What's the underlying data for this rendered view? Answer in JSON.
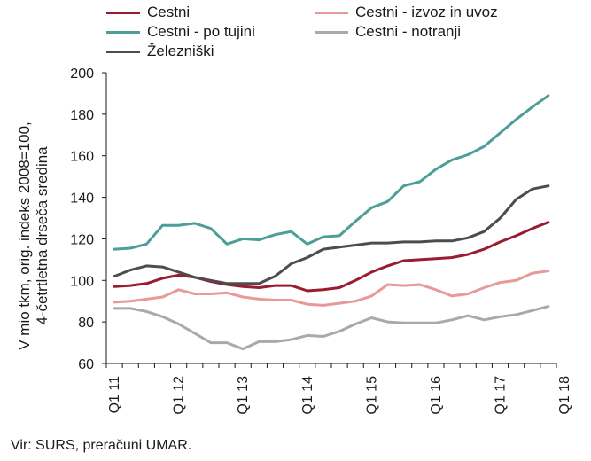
{
  "chart_data": {
    "type": "line",
    "ylabel_lines": [
      "V mio tkm, orig. indeks 2008=100,",
      "4-četrtletna drseča sredina"
    ],
    "xlabel": "",
    "ylim": [
      60,
      200
    ],
    "yticks": [
      60,
      80,
      100,
      120,
      140,
      160,
      180,
      200
    ],
    "x_tick_labels": [
      "Q1 11",
      "Q1 12",
      "Q1 13",
      "Q1 14",
      "Q1 15",
      "Q1 16",
      "Q1 17",
      "Q1 18"
    ],
    "x_count": 28,
    "grid": false,
    "legend_position": "top",
    "series": [
      {
        "name": "Cestni",
        "color": "#9b1b30",
        "values": [
          97,
          97.5,
          98.5,
          101,
          102.5,
          101.5,
          99.5,
          98,
          97,
          96.5,
          97.5,
          97.5,
          95,
          95.5,
          96.5,
          100,
          104,
          107,
          109.5,
          110,
          110.5,
          111,
          112.5,
          115,
          118.5,
          121.5,
          125,
          128
        ]
      },
      {
        "name": "Cestni - izvoz in uvoz",
        "color": "#e79a98",
        "values": [
          89.5,
          90,
          91,
          92,
          95.5,
          93.5,
          93.5,
          94,
          92,
          91,
          90.5,
          90.5,
          88.5,
          88,
          89,
          90,
          92.5,
          98,
          97.5,
          98,
          95.5,
          92.5,
          93.5,
          96.5,
          99,
          100,
          103.5,
          104.5
        ]
      },
      {
        "name": "Cestni - po tujini",
        "color": "#4d9e98",
        "values": [
          115,
          115.5,
          117.5,
          126.5,
          126.5,
          127.5,
          125,
          117.5,
          120,
          119.5,
          122,
          123.5,
          117.5,
          121,
          121.5,
          128.5,
          135,
          138,
          145.5,
          147.5,
          153.5,
          158,
          160.5,
          164.5,
          171,
          177.5,
          183.5,
          189
        ]
      },
      {
        "name": "Cestni - notranji",
        "color": "#a9a9a9",
        "values": [
          86.5,
          86.5,
          85,
          82.5,
          79,
          74.5,
          70,
          70,
          67,
          70.5,
          70.5,
          71.5,
          73.5,
          73,
          75.5,
          79,
          82,
          80,
          79.5,
          79.5,
          79.5,
          81,
          83,
          81,
          82.5,
          83.5,
          85.5,
          87.5
        ]
      },
      {
        "name": "Železniški",
        "color": "#4d4d4d",
        "values": [
          102,
          105,
          107,
          106.5,
          104,
          101.5,
          100,
          98.5,
          98.5,
          98.5,
          102,
          108,
          111,
          115,
          116,
          117,
          118,
          118,
          118.5,
          118.5,
          119,
          119,
          120.5,
          123.5,
          130,
          139,
          144,
          145.5
        ]
      }
    ]
  },
  "source": "Vir: SURS, preračuni UMAR."
}
